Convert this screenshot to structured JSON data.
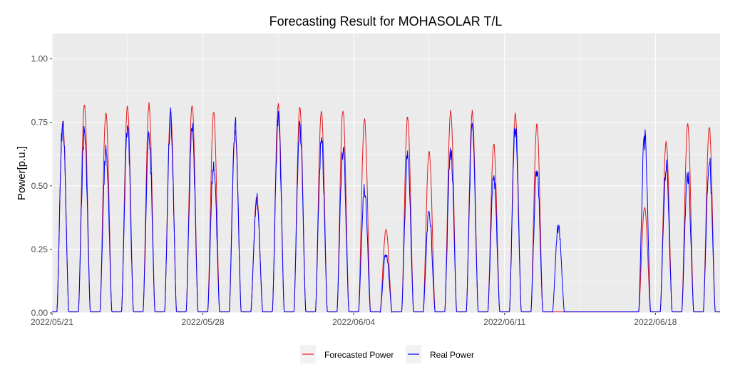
{
  "chart_data": {
    "type": "line",
    "title": "Forecasting Result for MOHASOLAR T/L",
    "xlabel": "",
    "ylabel": "Power[p.u.]",
    "x_range": [
      "2022/05/21",
      "2022/06/21"
    ],
    "x_ticks": [
      "2022/05/21",
      "2022/05/28",
      "2022/06/04",
      "2022/06/11",
      "2022/06/18"
    ],
    "ylim": [
      0,
      1.1
    ],
    "y_ticks": [
      "0.00",
      "0.25",
      "0.50",
      "0.75",
      "1.00"
    ],
    "grid": true,
    "legend_position": "bottom",
    "colors": {
      "forecast": "#e41a1c",
      "real": "#0000ff",
      "panel": "#ebebeb",
      "grid": "#ffffff"
    },
    "series": [
      {
        "name": "Forecasted Power",
        "color": "#e41a1c",
        "daily_peaks": [
          [
            "2022/05/21",
            0.76
          ],
          [
            "2022/05/22",
            0.83
          ],
          [
            "2022/05/23",
            0.8
          ],
          [
            "2022/05/24",
            0.82
          ],
          [
            "2022/05/25",
            0.83
          ],
          [
            "2022/05/26",
            0.8
          ],
          [
            "2022/05/27",
            0.83
          ],
          [
            "2022/05/28",
            0.8
          ],
          [
            "2022/05/29",
            0.72
          ],
          [
            "2022/05/30",
            0.46
          ],
          [
            "2022/05/31",
            0.83
          ],
          [
            "2022/06/01",
            0.82
          ],
          [
            "2022/06/02",
            0.8
          ],
          [
            "2022/06/03",
            0.81
          ],
          [
            "2022/06/04",
            0.77
          ],
          [
            "2022/06/05",
            0.33
          ],
          [
            "2022/06/06",
            0.78
          ],
          [
            "2022/06/07",
            0.64
          ],
          [
            "2022/06/08",
            0.8
          ],
          [
            "2022/06/09",
            0.8
          ],
          [
            "2022/06/10",
            0.67
          ],
          [
            "2022/06/11",
            0.79
          ],
          [
            "2022/06/12",
            0.75
          ],
          [
            "2022/06/13",
            0.0
          ],
          [
            "2022/06/14",
            0.0
          ],
          [
            "2022/06/15",
            0.0
          ],
          [
            "2022/06/16",
            0.0
          ],
          [
            "2022/06/17",
            0.42
          ],
          [
            "2022/06/18",
            0.68
          ],
          [
            "2022/06/19",
            0.75
          ],
          [
            "2022/06/20",
            0.74
          ]
        ]
      },
      {
        "name": "Real Power",
        "color": "#0000ff",
        "daily_peaks": [
          [
            "2022/05/21",
            0.79
          ],
          [
            "2022/05/22",
            0.76
          ],
          [
            "2022/05/23",
            0.68
          ],
          [
            "2022/05/24",
            0.78
          ],
          [
            "2022/05/25",
            0.74
          ],
          [
            "2022/05/26",
            0.81
          ],
          [
            "2022/05/27",
            0.76
          ],
          [
            "2022/05/28",
            0.62
          ],
          [
            "2022/05/29",
            0.79
          ],
          [
            "2022/05/30",
            0.48
          ],
          [
            "2022/05/31",
            0.81
          ],
          [
            "2022/06/01",
            0.78
          ],
          [
            "2022/06/02",
            0.71
          ],
          [
            "2022/06/03",
            0.69
          ],
          [
            "2022/06/04",
            0.52
          ],
          [
            "2022/06/05",
            0.25
          ],
          [
            "2022/06/06",
            0.65
          ],
          [
            "2022/06/07",
            0.42
          ],
          [
            "2022/06/08",
            0.68
          ],
          [
            "2022/06/09",
            0.76
          ],
          [
            "2022/06/10",
            0.57
          ],
          [
            "2022/06/11",
            0.76
          ],
          [
            "2022/06/12",
            0.61
          ],
          [
            "2022/06/13",
            0.36
          ],
          [
            "2022/06/14",
            0.0
          ],
          [
            "2022/06/15",
            0.0
          ],
          [
            "2022/06/16",
            0.0
          ],
          [
            "2022/06/17",
            0.73
          ],
          [
            "2022/06/18",
            0.61
          ],
          [
            "2022/06/19",
            0.58
          ],
          [
            "2022/06/20",
            0.64
          ]
        ]
      }
    ]
  }
}
